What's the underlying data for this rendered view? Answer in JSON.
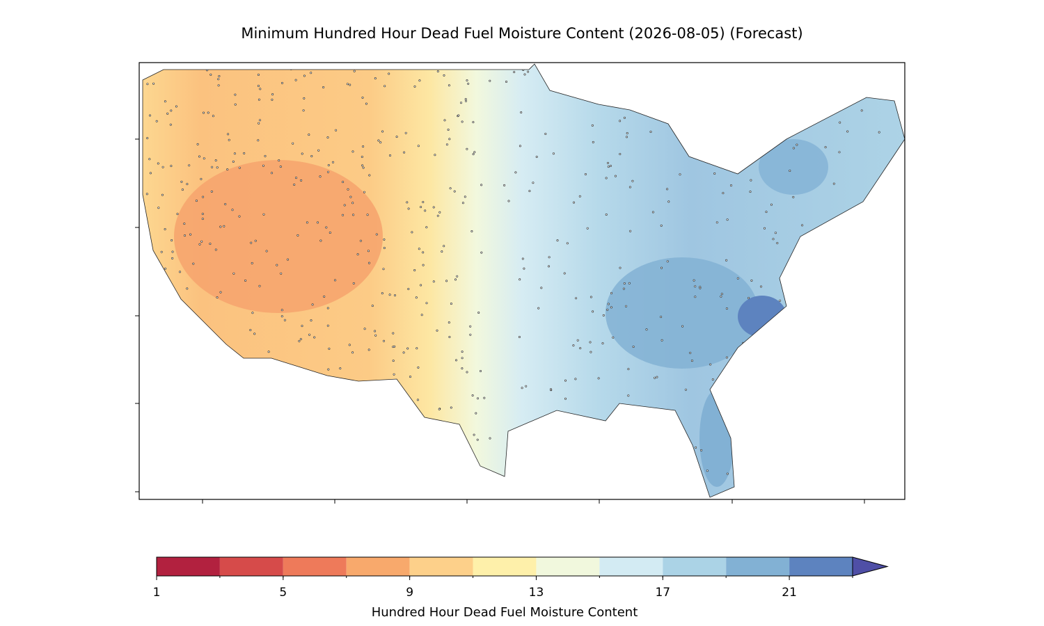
{
  "title": "Minimum Hundred Hour Dead Fuel Moisture Content (2026-08-05) (Forecast)",
  "colorbar": {
    "label": "Hundred Hour Dead Fuel Moisture Content",
    "levels": [
      1,
      3,
      5,
      7,
      9,
      11,
      13,
      15,
      17,
      19,
      21,
      23
    ],
    "colors": [
      "#b2213f",
      "#d64b4a",
      "#ee7a5a",
      "#f8a96c",
      "#fdd08a",
      "#fef0aa",
      "#f1f8dd",
      "#d3ebf3",
      "#abd3e6",
      "#82b1d4",
      "#5d83bf"
    ],
    "extend_color": "#4f4fa6",
    "ticks": [
      1,
      5,
      9,
      13,
      17,
      21
    ]
  }
}
